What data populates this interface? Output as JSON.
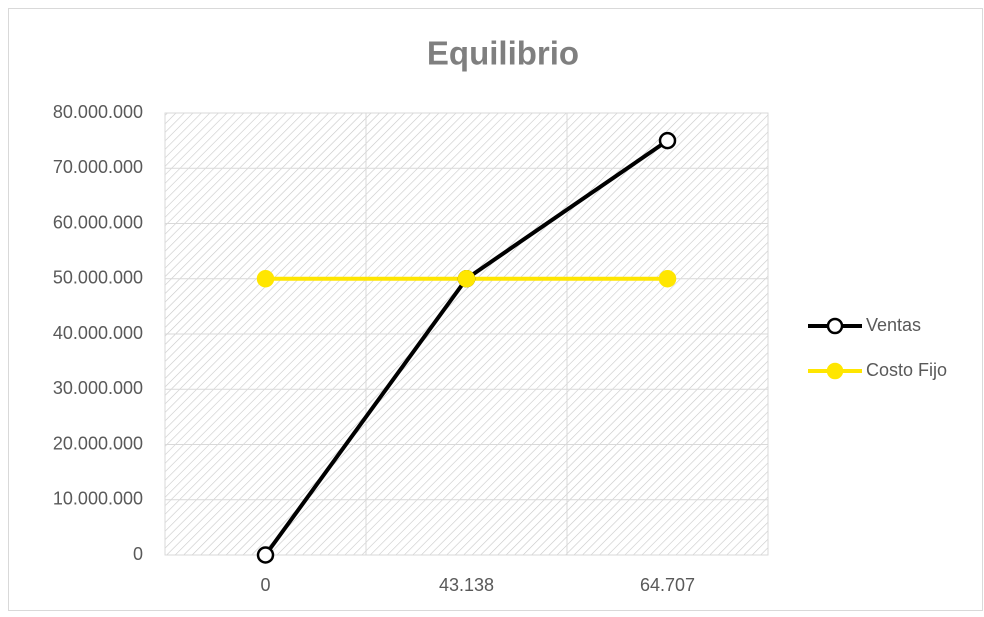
{
  "chart_data": {
    "type": "line",
    "title": "Equilibrio",
    "categories": [
      "0",
      "43.138",
      "64.707"
    ],
    "series": [
      {
        "name": "Ventas",
        "color": "#000000",
        "marker_fill": "#ffffff",
        "values": [
          0,
          50000000,
          75000000
        ]
      },
      {
        "name": "Costo Fijo",
        "color": "#ffe600",
        "marker_fill": "#ffe600",
        "values": [
          50000000,
          50000000,
          50000000
        ]
      }
    ],
    "ylim": [
      0,
      80000000
    ],
    "yticks": [
      0,
      {
        "value": 10000000,
        "label": "10.000.000"
      },
      {
        "value": 20000000,
        "label": "20.000.000"
      },
      {
        "value": 30000000,
        "label": "30.000.000"
      },
      {
        "value": 40000000,
        "label": "40.000.000"
      },
      {
        "value": 50000000,
        "label": "50.000.000"
      },
      {
        "value": 60000000,
        "label": "60.000.000"
      },
      {
        "value": 70000000,
        "label": "70.000.000"
      },
      {
        "value": 80000000,
        "label": "80.000.000"
      }
    ],
    "grid": true,
    "legend": "right"
  }
}
